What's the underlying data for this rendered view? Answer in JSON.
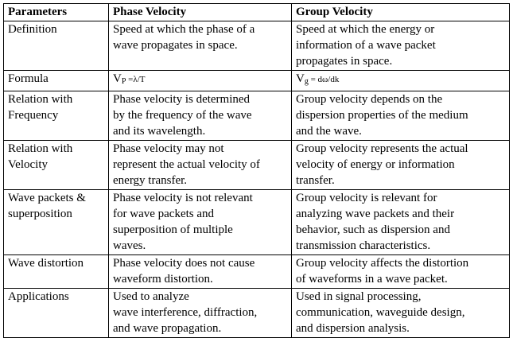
{
  "headers": [
    "Parameters",
    "Phase Velocity",
    "Group Velocity"
  ],
  "rows": [
    {
      "parameter": [
        "Definition"
      ],
      "phase": [
        "Speed at which the phase of a",
        "wave propagates in space."
      ],
      "group": [
        "Speed at which the energy or",
        "information of a wave packet",
        "propagates in space."
      ]
    },
    {
      "parameter": [
        "Formula"
      ],
      "phase_formula": {
        "symbol": "V",
        "sub": "P",
        "rhs": " =λ/T"
      },
      "group_formula": {
        "symbol": "V",
        "sub": "g",
        "rhs": " = dω/dk"
      }
    },
    {
      "parameter": [
        "Relation with",
        "Frequency"
      ],
      "phase": [
        "Phase velocity is determined",
        "by the frequency of the wave",
        "and its wavelength."
      ],
      "group": [
        "Group velocity depends on the",
        "dispersion properties of the medium",
        "and the wave."
      ]
    },
    {
      "parameter": [
        "Relation with",
        "Velocity"
      ],
      "phase": [
        "Phase velocity may not",
        "represent the actual velocity of",
        "energy transfer."
      ],
      "group": [
        "Group velocity represents the actual",
        "velocity of energy or information",
        "transfer."
      ]
    },
    {
      "parameter": [
        "Wave packets &",
        "superposition"
      ],
      "phase": [
        "Phase velocity is not relevant",
        "for wave packets and",
        "superposition of multiple",
        "waves."
      ],
      "group": [
        "Group velocity is relevant for",
        "analyzing wave packets and their",
        "behavior, such as dispersion and",
        "transmission characteristics."
      ]
    },
    {
      "parameter": [
        "Wave distortion"
      ],
      "phase": [
        "Phase velocity does not cause",
        "waveform distortion."
      ],
      "group": [
        "Group velocity affects the distortion",
        "of waveforms in a wave packet."
      ]
    },
    {
      "parameter": [
        "Applications"
      ],
      "phase": [
        "Used to analyze",
        "wave interference, diffraction,",
        "and wave propagation."
      ],
      "group": [
        "Used in signal processing,",
        "communication, waveguide design,",
        "and dispersion analysis."
      ]
    }
  ]
}
